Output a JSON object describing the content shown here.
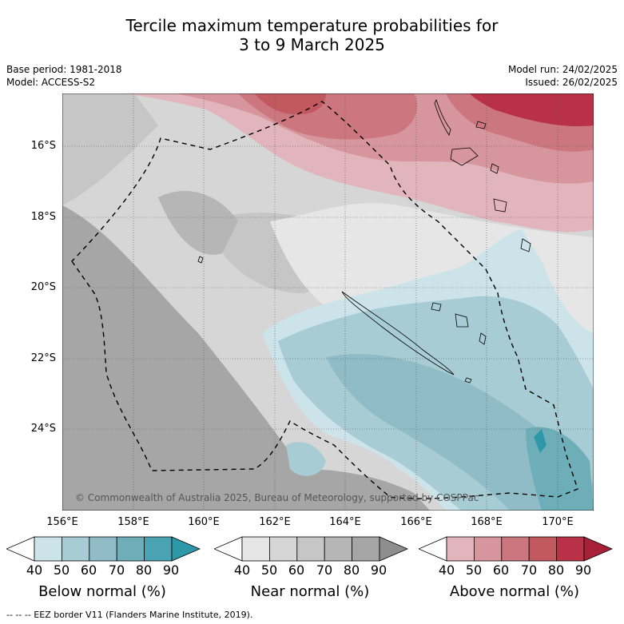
{
  "title_line1": "Tercile maximum temperature probabilities for",
  "title_line2": "3 to 9 March 2025",
  "base_period": "Base period: 1981-2018",
  "model": "Model: ACCESS-S2",
  "model_run": "Model run: 24/02/2025",
  "issued": "Issued: 26/02/2025",
  "copyright": "© Commonwealth of Australia 2025, Bureau of Meteorology, supported by COSPPac",
  "lat_labels": [
    "16°S",
    "18°S",
    "20°S",
    "22°S",
    "24°S"
  ],
  "lon_labels": [
    "156°E",
    "158°E",
    "160°E",
    "162°E",
    "164°E",
    "166°E",
    "168°E",
    "170°E"
  ],
  "colorbars": [
    {
      "label": "Below normal (%)",
      "ticks": [
        "40",
        "50",
        "60",
        "70",
        "80",
        "90"
      ],
      "colors": [
        "#ffffff",
        "#cce3e9",
        "#a8ccd3",
        "#8fbcc7",
        "#6eaeb8",
        "#4aa3b2",
        "#2e98a8"
      ]
    },
    {
      "label": "Near normal (%)",
      "ticks": [
        "40",
        "50",
        "60",
        "70",
        "80",
        "90"
      ],
      "colors": [
        "#ffffff",
        "#e6e6e6",
        "#d6d6d6",
        "#c6c6c6",
        "#b6b6b6",
        "#a6a6a6",
        "#8e8e8e"
      ]
    },
    {
      "label": "Above normal (%)",
      "ticks": [
        "40",
        "50",
        "60",
        "70",
        "80",
        "90"
      ],
      "colors": [
        "#ffffff",
        "#e2b5bc",
        "#d7959d",
        "#cc7680",
        "#c2595f",
        "#b93147",
        "#a82038"
      ]
    }
  ],
  "eez_note": "-- -- -- EEZ border V11 (Flanders Marine Institute, 2019)."
}
